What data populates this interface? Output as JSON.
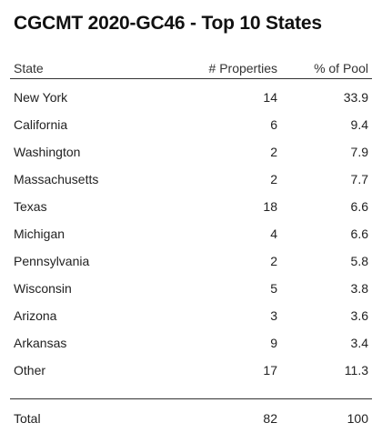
{
  "title": "CGCMT 2020-GC46 - Top 10 States",
  "columns": {
    "state": "State",
    "properties": "# Properties",
    "pct": "% of Pool"
  },
  "rows": [
    {
      "state": "New York",
      "properties": "14",
      "pct": "33.9"
    },
    {
      "state": "California",
      "properties": "6",
      "pct": "9.4"
    },
    {
      "state": "Washington",
      "properties": "2",
      "pct": "7.9"
    },
    {
      "state": "Massachusetts",
      "properties": "2",
      "pct": "7.7"
    },
    {
      "state": "Texas",
      "properties": "18",
      "pct": "6.6"
    },
    {
      "state": "Michigan",
      "properties": "4",
      "pct": "6.6"
    },
    {
      "state": "Pennsylvania",
      "properties": "2",
      "pct": "5.8"
    },
    {
      "state": "Wisconsin",
      "properties": "5",
      "pct": "3.8"
    },
    {
      "state": "Arizona",
      "properties": "3",
      "pct": "3.6"
    },
    {
      "state": "Arkansas",
      "properties": "9",
      "pct": "3.4"
    },
    {
      "state": "Other",
      "properties": "17",
      "pct": "11.3"
    }
  ],
  "total": {
    "label": "Total",
    "properties": "82",
    "pct": "100"
  }
}
